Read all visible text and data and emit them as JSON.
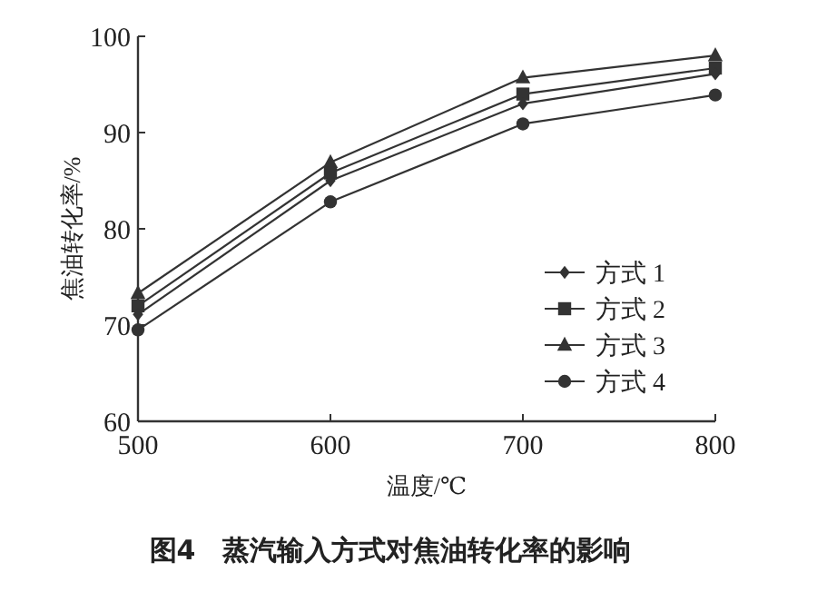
{
  "chart_data": {
    "type": "line",
    "title": "图4　蒸汽输入方式对焦油转化率的影响",
    "xlabel": "温度/℃",
    "ylabel": "焦油转化率/%",
    "x": [
      500,
      600,
      700,
      800
    ],
    "series": [
      {
        "name": "方式 1",
        "color": "#333333",
        "marker": "diamond",
        "values": [
          71.1,
          85.0,
          93.0,
          96.1
        ]
      },
      {
        "name": "方式 2",
        "color": "#333333",
        "marker": "square",
        "values": [
          72.0,
          85.8,
          94.0,
          96.7
        ]
      },
      {
        "name": "方式 3",
        "color": "#333333",
        "marker": "triangle",
        "values": [
          73.3,
          86.9,
          95.7,
          98.0
        ]
      },
      {
        "name": "方式 4",
        "color": "#333333",
        "marker": "circle",
        "values": [
          69.5,
          82.8,
          90.9,
          93.9
        ]
      }
    ],
    "xlim": [
      500,
      800
    ],
    "xticks": [
      500,
      600,
      700,
      800
    ],
    "ylim": [
      60,
      100
    ],
    "yticks": [
      60,
      70,
      80,
      90,
      100
    ],
    "legend": "right",
    "grid": false,
    "line_style": "solid"
  }
}
